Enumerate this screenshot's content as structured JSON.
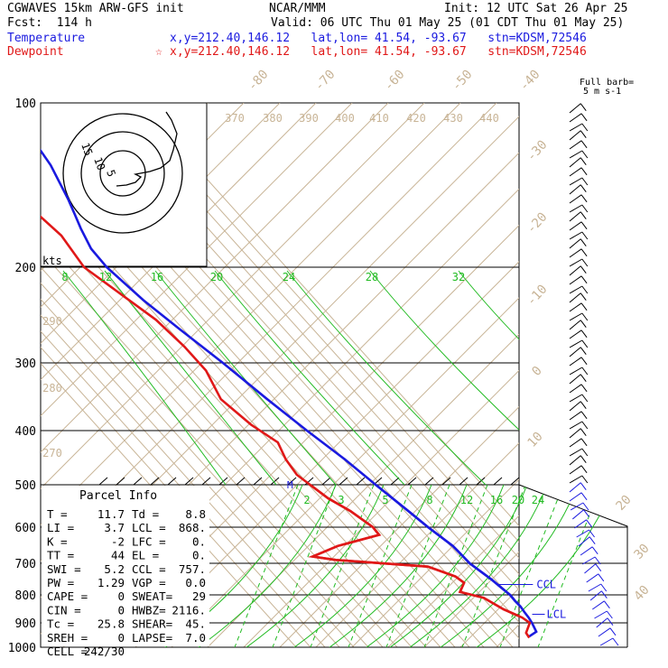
{
  "header": {
    "model": "CGWAVES 15km ARW-GFS init",
    "org": "NCAR/MMM",
    "init": "Init: 12 UTC Sat 26 Apr 25",
    "fcst": "Fcst:  114 h",
    "valid": "Valid: 06 UTC Thu 01 May 25 (01 CDT Thu 01 May 25)",
    "temp_label": "Temperature",
    "temp_loc": "x,y=212.40,146.12   lat,lon= 41.54, -93.67   stn=KDSM,72546",
    "dew_label": "Dewpoint",
    "dew_loc": "x,y=212.40,146.12   lat,lon= 41.54, -93.67   stn=KDSM,72546",
    "barb_note_1": "Full barb=",
    "barb_note_2": "5 m s-1"
  },
  "colors": {
    "temperature": "#1a1adf",
    "dewpoint": "#e01818",
    "dry_adiabat": "#c8b496",
    "moist": "#22bb22",
    "hodograph": "#000000"
  },
  "chart_data": {
    "type": "line",
    "title": "",
    "ylabel": "",
    "y_scale": "log-pressure",
    "ylim": [
      1000,
      100
    ],
    "pressure_ticks": [
      100,
      200,
      300,
      400,
      500,
      600,
      700,
      800,
      900,
      1000
    ],
    "isotherm_labels": [
      "-80",
      "-70",
      "-60",
      "-50",
      "-40",
      "-30",
      "-20",
      "-10",
      "0",
      "10",
      "20",
      "30",
      "40"
    ],
    "theta_labels": [
      "370",
      "380",
      "390",
      "400",
      "410",
      "420",
      "430",
      "440",
      "290",
      "280",
      "270"
    ],
    "mixing_ratio_labels_upper": [
      "8",
      "12",
      "16",
      "20",
      "24",
      "28",
      "32"
    ],
    "mixing_ratio_labels_lower": [
      "2",
      "3",
      "5",
      "8",
      "12",
      "16",
      "20",
      "24"
    ],
    "series": [
      {
        "name": "Temperature",
        "color": "#1a1adf",
        "points": [
          [
            955,
            -2.1
          ],
          [
            935,
            6
          ],
          [
            900,
            8.5
          ],
          [
            880,
            9.5
          ],
          [
            860,
            10
          ],
          [
            840,
            10.8
          ],
          [
            820,
            10.5
          ],
          [
            800,
            10.8
          ],
          [
            775,
            9.2
          ],
          [
            750,
            7.6
          ],
          [
            700,
            2.5
          ],
          [
            680,
            2.2
          ],
          [
            650,
            1.7
          ],
          [
            600,
            -3.8
          ],
          [
            560,
            -7.4
          ],
          [
            500,
            -13.6
          ],
          [
            450,
            -19.2
          ],
          [
            400,
            -27.5
          ],
          [
            350,
            -35.4
          ],
          [
            300,
            -43.5
          ],
          [
            260,
            -52.4
          ],
          [
            230,
            -59.5
          ],
          [
            200,
            -64.3
          ],
          [
            185,
            -63.6
          ],
          [
            170,
            -58.2
          ],
          [
            160,
            -53.5
          ],
          [
            150,
            -48.6
          ],
          [
            130,
            -39.5
          ],
          [
            115,
            -35.3
          ],
          [
            100,
            -32.9
          ]
        ]
      },
      {
        "name": "Dewpoint",
        "color": "#e01818",
        "points": [
          [
            960,
            -2.7
          ],
          [
            940,
            -1.8
          ],
          [
            900,
            7
          ],
          [
            880,
            5
          ],
          [
            850,
            -2.7
          ],
          [
            810,
            -9.3
          ],
          [
            790,
            -22
          ],
          [
            760,
            -13.5
          ],
          [
            740,
            -15.5
          ],
          [
            710,
            -28.5
          ],
          [
            690,
            -88
          ],
          [
            680,
            -102
          ],
          [
            650,
            -78
          ],
          [
            620,
            -42.5
          ],
          [
            600,
            -42
          ],
          [
            560,
            -47.5
          ],
          [
            530,
            -55
          ],
          [
            480,
            -62
          ],
          [
            450,
            -60
          ],
          [
            420,
            -55
          ],
          [
            390,
            -62.5
          ],
          [
            350,
            -67.5
          ],
          [
            310,
            -60
          ],
          [
            280,
            -60
          ],
          [
            250,
            -63
          ],
          [
            225,
            -71
          ],
          [
            200,
            -80
          ],
          [
            175,
            -76
          ],
          [
            155,
            -80
          ],
          [
            140,
            -85
          ],
          [
            120,
            -90
          ],
          [
            108,
            -94
          ],
          [
            100,
            -94
          ]
        ]
      }
    ],
    "parcel_info": {
      "title": "Parcel Info",
      "rows": [
        [
          "T  =",
          "11.7",
          "Td =",
          "8.8"
        ],
        [
          "LI =",
          "3.7",
          "LCL =",
          "868."
        ],
        [
          "K  =",
          "-2",
          "LFC =",
          "0."
        ],
        [
          "TT =",
          "44",
          "EL =",
          "0."
        ],
        [
          "SWI =",
          "5.2",
          "CCL =",
          "757."
        ],
        [
          "PW =",
          "1.29",
          "VGP =",
          "0.0"
        ],
        [
          "CAPE =",
          "0",
          "SWEAT=",
          "29"
        ],
        [
          "CIN =",
          "0",
          "HWBZ=",
          "2116."
        ],
        [
          "Tc =",
          "25.8",
          "SHEAR=",
          "45."
        ],
        [
          "SREH =",
          "0",
          "LAPSE=",
          "7.0"
        ],
        [
          "CELL =",
          "242/30",
          "",
          ""
        ]
      ]
    },
    "level_markers": [
      {
        "label": "CCL"
      },
      {
        "label": "LCL"
      },
      {
        "label": "M"
      }
    ],
    "hodograph": {
      "units": "kts",
      "ring_labels": [
        "15",
        "10",
        "5"
      ]
    }
  }
}
